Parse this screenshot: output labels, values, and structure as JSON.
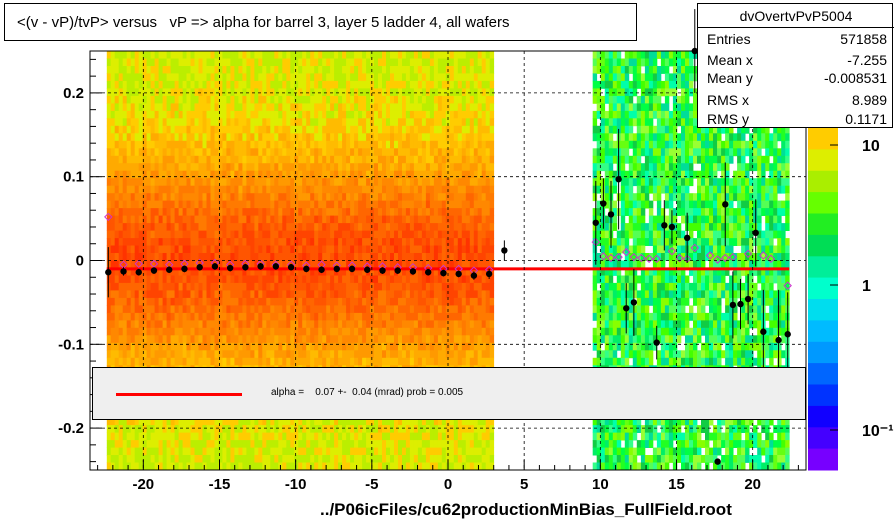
{
  "title": "<(v - vP)/tvP> versus   vP => alpha for barrel 3, layer 5 ladder 4, all wafers",
  "footer": "../P06icFiles/cu62productionMinBias_FullField.root",
  "stats": {
    "name": "dvOvertvPvP5004",
    "rows": [
      {
        "key": "Entries",
        "value": "571858"
      },
      {
        "key": "Mean x",
        "value": "-7.255"
      },
      {
        "key": "Mean y",
        "value": "-0.008531"
      },
      {
        "key": "RMS x",
        "value": "8.989"
      },
      {
        "key": "RMS y",
        "value": "0.1171"
      }
    ]
  },
  "legend": {
    "text": "alpha =    0.07 +-  0.04 (mrad) prob = 0.005",
    "color": "#ff0000"
  },
  "colors": {
    "fit_line": "#ff0000",
    "profile_points": "#000000",
    "mean_markers": "#cc33cc"
  },
  "chart_data": {
    "type": "heatmap",
    "title": "<(v - vP)/tvP> versus   vP => alpha for barrel 3, layer 5 ladder 4, all wafers",
    "xlim": [
      -23.5,
      23.5
    ],
    "ylim": [
      -0.25,
      0.25
    ],
    "x_ticks": [
      -20,
      -15,
      -10,
      -5,
      0,
      5,
      10,
      15,
      20
    ],
    "x_tick_labels": [
      "-20",
      "-15",
      "-10",
      "-5",
      "0",
      "5",
      "10",
      "15",
      "20"
    ],
    "y_ticks": [
      -0.2,
      -0.1,
      0,
      0.1,
      0.2
    ],
    "y_tick_labels": [
      "-0.2",
      "-0.1",
      "0",
      "0.1",
      "0.2"
    ],
    "z_scale": "log",
    "z_tick_labels": [
      "10",
      "1",
      "10⁻¹"
    ],
    "grid": true,
    "density_bands": [
      {
        "x_range": [
          -22.4,
          3.0
        ],
        "level": "high"
      },
      {
        "x_range": [
          9.5,
          22.4
        ],
        "level": "low"
      }
    ],
    "fit": {
      "x_range": [
        -22.4,
        22.4
      ],
      "y": -0.01
    },
    "profile_points": [
      {
        "x": -22.3,
        "y": -0.014,
        "err": 0.03
      },
      {
        "x": -21.3,
        "y": -0.013,
        "err": 0.005
      },
      {
        "x": -20.3,
        "y": -0.014,
        "err": 0.004
      },
      {
        "x": -19.3,
        "y": -0.012,
        "err": 0.004
      },
      {
        "x": -18.3,
        "y": -0.011,
        "err": 0.004
      },
      {
        "x": -17.3,
        "y": -0.01,
        "err": 0.004
      },
      {
        "x": -16.3,
        "y": -0.008,
        "err": 0.004
      },
      {
        "x": -15.3,
        "y": -0.007,
        "err": 0.004
      },
      {
        "x": -14.3,
        "y": -0.009,
        "err": 0.004
      },
      {
        "x": -13.3,
        "y": -0.008,
        "err": 0.004
      },
      {
        "x": -12.3,
        "y": -0.007,
        "err": 0.004
      },
      {
        "x": -11.3,
        "y": -0.007,
        "err": 0.004
      },
      {
        "x": -10.3,
        "y": -0.008,
        "err": 0.004
      },
      {
        "x": -9.3,
        "y": -0.01,
        "err": 0.004
      },
      {
        "x": -8.3,
        "y": -0.011,
        "err": 0.004
      },
      {
        "x": -7.3,
        "y": -0.01,
        "err": 0.004
      },
      {
        "x": -6.3,
        "y": -0.01,
        "err": 0.004
      },
      {
        "x": -5.3,
        "y": -0.011,
        "err": 0.004
      },
      {
        "x": -4.3,
        "y": -0.012,
        "err": 0.004
      },
      {
        "x": -3.3,
        "y": -0.012,
        "err": 0.004
      },
      {
        "x": -2.3,
        "y": -0.013,
        "err": 0.004
      },
      {
        "x": -1.3,
        "y": -0.014,
        "err": 0.004
      },
      {
        "x": -0.3,
        "y": -0.015,
        "err": 0.004
      },
      {
        "x": 0.7,
        "y": -0.016,
        "err": 0.004
      },
      {
        "x": 1.7,
        "y": -0.018,
        "err": 0.005
      },
      {
        "x": 2.7,
        "y": -0.016,
        "err": 0.006
      },
      {
        "x": 3.7,
        "y": 0.012,
        "err": 0.012
      },
      {
        "x": 9.7,
        "y": 0.045,
        "err": 0.05
      },
      {
        "x": 10.2,
        "y": 0.068,
        "err": 0.03
      },
      {
        "x": 10.7,
        "y": 0.055,
        "err": 0.04
      },
      {
        "x": 11.2,
        "y": 0.097,
        "err": 0.06
      },
      {
        "x": 11.7,
        "y": -0.057,
        "err": 0.03
      },
      {
        "x": 12.2,
        "y": -0.05,
        "err": 0.04
      },
      {
        "x": 13.7,
        "y": -0.098,
        "err": 0.02
      },
      {
        "x": 14.2,
        "y": 0.042,
        "err": 0.03
      },
      {
        "x": 14.7,
        "y": 0.04,
        "err": 0.02
      },
      {
        "x": 15.7,
        "y": 0.027,
        "err": 0.03
      },
      {
        "x": 16.2,
        "y": 0.25,
        "err": 0.05
      },
      {
        "x": 18.2,
        "y": 0.067,
        "err": 0.05
      },
      {
        "x": 18.7,
        "y": -0.053,
        "err": 0.04
      },
      {
        "x": 19.2,
        "y": -0.052,
        "err": 0.03
      },
      {
        "x": 19.7,
        "y": -0.046,
        "err": 0.03
      },
      {
        "x": 20.2,
        "y": 0.033,
        "err": 0.04
      },
      {
        "x": 20.7,
        "y": -0.085,
        "err": 0.05
      },
      {
        "x": 21.7,
        "y": -0.095,
        "err": 0.06
      },
      {
        "x": 22.3,
        "y": -0.088,
        "err": 0.05
      },
      {
        "x": 17.7,
        "y": -0.24,
        "err": 0.0
      }
    ],
    "mean_markers": [
      {
        "x": -22.3,
        "y": 0.052
      },
      {
        "x": -21.3,
        "y": -0.005
      },
      {
        "x": -20.3,
        "y": -0.004
      },
      {
        "x": -19.3,
        "y": -0.004
      },
      {
        "x": -18.3,
        "y": -0.005
      },
      {
        "x": -17.3,
        "y": -0.004
      },
      {
        "x": -16.3,
        "y": -0.003
      },
      {
        "x": -15.3,
        "y": -0.003
      },
      {
        "x": -14.3,
        "y": -0.005
      },
      {
        "x": -13.3,
        "y": -0.004
      },
      {
        "x": -12.3,
        "y": -0.004
      },
      {
        "x": -11.3,
        "y": -0.005
      },
      {
        "x": -10.3,
        "y": -0.005
      },
      {
        "x": -9.3,
        "y": -0.006
      },
      {
        "x": -8.3,
        "y": -0.005
      },
      {
        "x": -7.3,
        "y": -0.006
      },
      {
        "x": -6.3,
        "y": -0.006
      },
      {
        "x": -5.3,
        "y": -0.007
      },
      {
        "x": -4.3,
        "y": -0.007
      },
      {
        "x": -3.3,
        "y": -0.008
      },
      {
        "x": -2.3,
        "y": -0.008
      },
      {
        "x": -1.3,
        "y": -0.009
      },
      {
        "x": -0.3,
        "y": -0.01
      },
      {
        "x": 0.7,
        "y": -0.01
      },
      {
        "x": 1.7,
        "y": -0.012
      },
      {
        "x": 2.7,
        "y": -0.011
      },
      {
        "x": 9.7,
        "y": 0.022
      },
      {
        "x": 10.2,
        "y": 0.005
      },
      {
        "x": 10.7,
        "y": 0.003
      },
      {
        "x": 11.2,
        "y": 0.004
      },
      {
        "x": 11.7,
        "y": 0.01
      },
      {
        "x": 12.2,
        "y": 0.004
      },
      {
        "x": 12.7,
        "y": 0.003
      },
      {
        "x": 13.2,
        "y": 0.002
      },
      {
        "x": 13.7,
        "y": 0.002
      },
      {
        "x": 14.7,
        "y": 0.011
      },
      {
        "x": 15.2,
        "y": 0.003
      },
      {
        "x": 15.7,
        "y": 0.002
      },
      {
        "x": 16.2,
        "y": 0.015
      },
      {
        "x": 17.2,
        "y": 0.006
      },
      {
        "x": 17.7,
        "y": 0.001
      },
      {
        "x": 18.2,
        "y": 0.003
      },
      {
        "x": 18.7,
        "y": 0.004
      },
      {
        "x": 19.7,
        "y": 0.008
      },
      {
        "x": 20.7,
        "y": 0.006
      },
      {
        "x": 21.2,
        "y": 0.002
      },
      {
        "x": 22.3,
        "y": -0.03
      }
    ]
  }
}
